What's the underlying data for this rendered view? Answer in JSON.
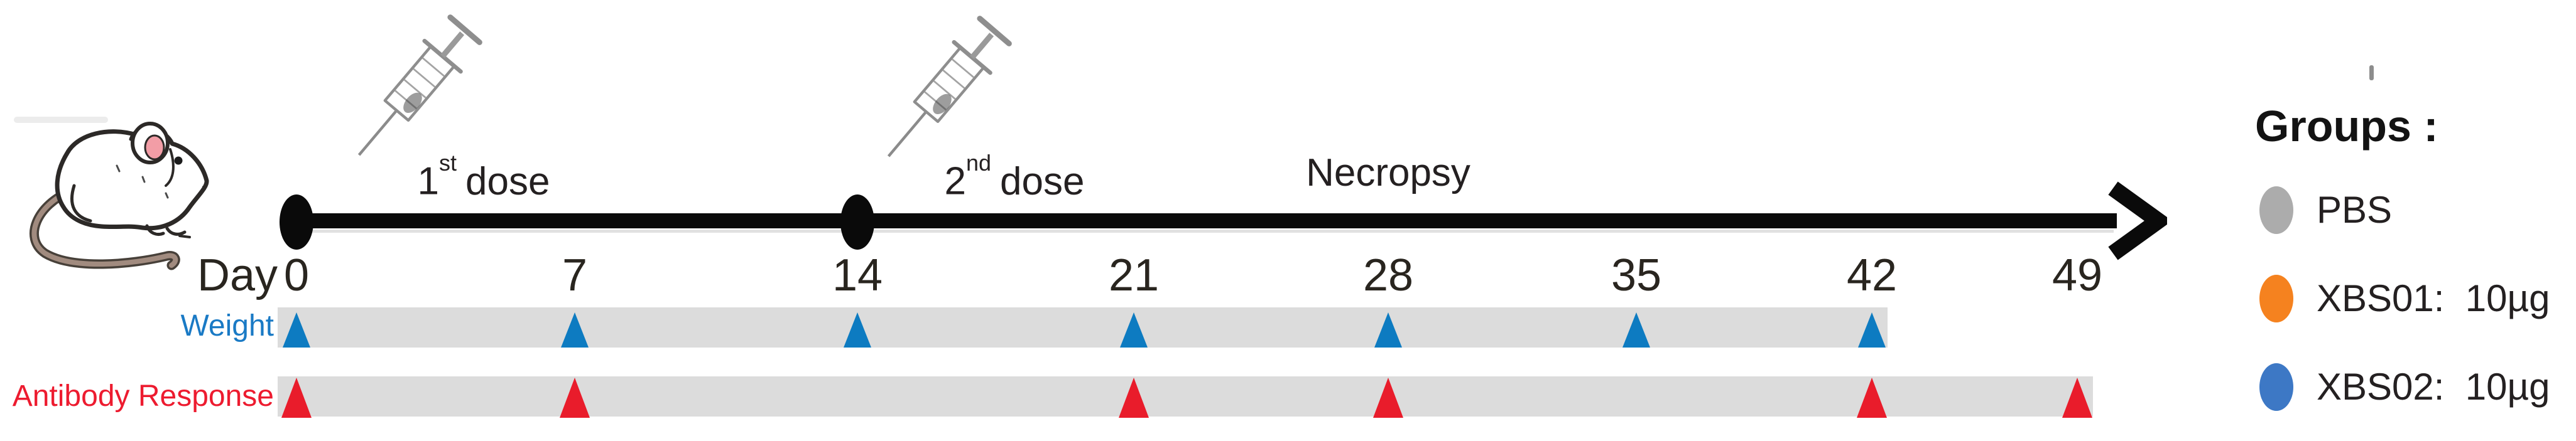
{
  "timeline": {
    "day_prefix": "Day",
    "days": [
      "0",
      "7",
      "14",
      "21",
      "28",
      "35",
      "42",
      "49"
    ],
    "day_values": [
      0,
      7,
      14,
      21,
      28,
      35,
      42,
      49
    ],
    "dose_marker_days": [
      0,
      14
    ],
    "dose1": {
      "num": "1",
      "sup": "st",
      "word": "dose"
    },
    "dose2": {
      "num": "2",
      "sup": "nd",
      "word": "dose"
    },
    "necropsy_label": "Necropsy"
  },
  "rows": [
    {
      "id": "weight",
      "label": "Weight",
      "label_color": "#1a7ac5",
      "marker_color": "#0d7bc1",
      "marked_days": [
        0,
        7,
        14,
        21,
        28,
        35,
        42
      ],
      "bar_end_day": 42
    },
    {
      "id": "antibody-response",
      "label": "Antibody Response",
      "label_color": "#ed1b2f",
      "marker_color": "#e91c2b",
      "marked_days": [
        0,
        7,
        21,
        28,
        42,
        49
      ],
      "bar_end_day": 49
    }
  ],
  "legend": {
    "title": "Groups :",
    "items": [
      {
        "label": "PBS",
        "color": "#acacac"
      },
      {
        "label": "XBS01:  10µg",
        "color": "#f5821f"
      },
      {
        "label": "XBS02:  10µg",
        "color": "#3d78c5"
      }
    ]
  },
  "colors": {
    "sampling_bar": "#dcdcdc",
    "timeline": "#0a0a0a",
    "weight_marker": "#0d7bc1",
    "antibody_marker": "#e91c2b"
  }
}
